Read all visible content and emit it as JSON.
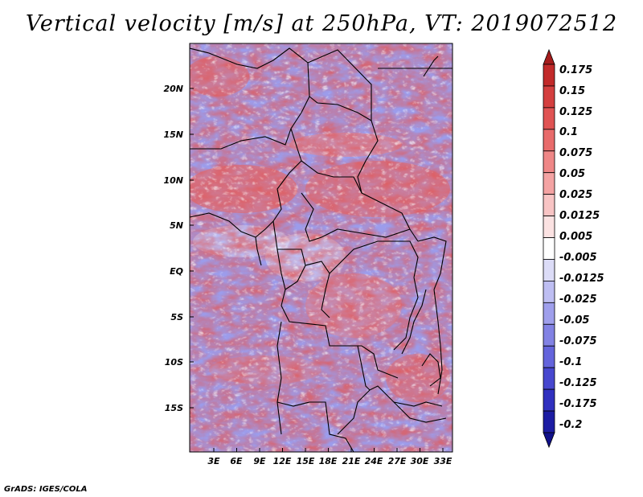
{
  "title": "Vertical velocity [m/s] at 250hPa, VT: 2019072512",
  "footer": "GrADS: IGES/COLA",
  "map": {
    "lat_ticks": [
      "20N",
      "15N",
      "10N",
      "5N",
      "EQ",
      "5S",
      "10S",
      "15S"
    ],
    "lon_ticks": [
      "3E",
      "6E",
      "9E",
      "12E",
      "15E",
      "18E",
      "21E",
      "24E",
      "27E",
      "30E",
      "33E"
    ],
    "lat_range": [
      -20.5,
      24.5
    ],
    "lon_range": [
      0,
      34.5
    ]
  },
  "colorbar": {
    "labels": [
      "0.175",
      "0.15",
      "0.125",
      "0.1",
      "0.075",
      "0.05",
      "0.025",
      "0.0125",
      "0.005",
      "-0.005",
      "-0.0125",
      "-0.025",
      "-0.05",
      "-0.075",
      "-0.1",
      "-0.125",
      "-0.175",
      "-0.2"
    ],
    "colors": [
      "#a51c1c",
      "#c22a2a",
      "#d43f3f",
      "#e05353",
      "#e86b6b",
      "#ef8787",
      "#f4a3a3",
      "#f8c4c4",
      "#fbe2e2",
      "#ffffff",
      "#dcdcf7",
      "#bebef2",
      "#9f9fec",
      "#8282e4",
      "#6464dc",
      "#4747cf",
      "#3030bf",
      "#1c1ca3",
      "#10108a"
    ]
  }
}
